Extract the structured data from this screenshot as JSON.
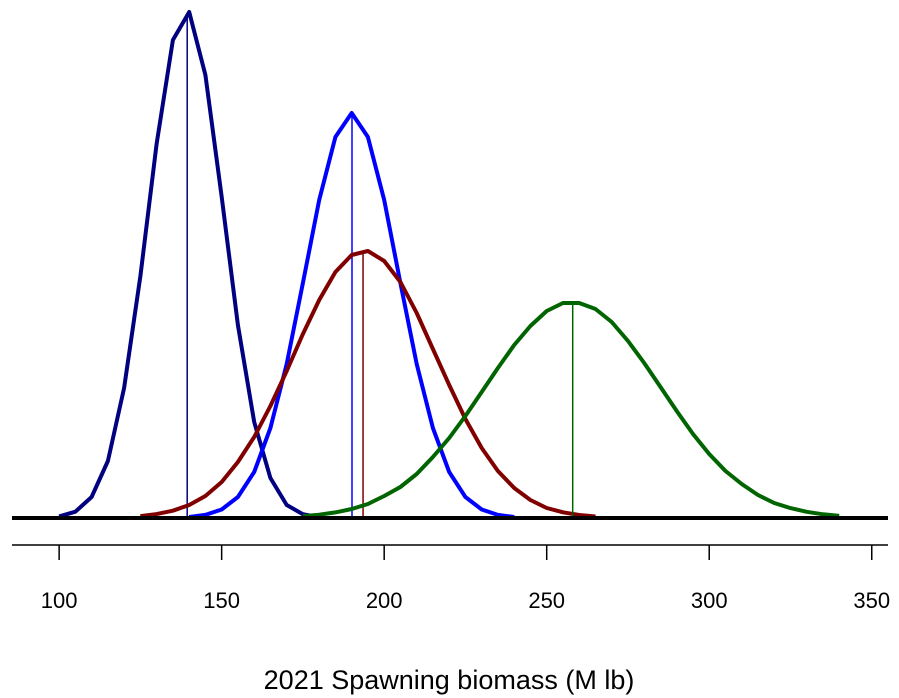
{
  "chart_data": {
    "type": "line",
    "x_label": "2021 Spawning biomass (M lb)",
    "xlim": [
      85.5,
      355
    ],
    "xticks": [
      100,
      150,
      200,
      250,
      300,
      350
    ],
    "ylim": [
      0,
      510
    ],
    "series": [
      {
        "color": "#000080",
        "median": 139.4,
        "x": [
          100,
          105,
          110,
          115,
          120,
          125,
          130,
          135,
          140,
          145,
          150,
          155,
          160,
          165,
          170,
          175,
          180
        ],
        "values": [
          1.6,
          6.3,
          21,
          57,
          130,
          242,
          374,
          478,
          506,
          443,
          321,
          193,
          96,
          40,
          13,
          3.8,
          0.9
        ]
      },
      {
        "color": "#0000ff",
        "median": 190.1,
        "x": [
          140,
          145,
          150,
          155,
          160,
          165,
          170,
          175,
          180,
          185,
          190,
          195,
          200,
          205,
          210,
          215,
          220,
          225,
          230,
          235,
          240
        ],
        "values": [
          1.0,
          3.1,
          8.5,
          21,
          46,
          90,
          154,
          235,
          318,
          381,
          405,
          381,
          318,
          235,
          154,
          90,
          46,
          21,
          8.5,
          3.1,
          1.0
        ]
      },
      {
        "color": "#800000",
        "median": 193.5,
        "x": [
          125,
          130,
          135,
          140,
          145,
          150,
          155,
          160,
          165,
          170,
          175,
          180,
          185,
          190,
          195,
          200,
          205,
          210,
          215,
          220,
          225,
          230,
          235,
          240,
          245,
          250,
          255,
          260,
          265
        ],
        "values": [
          1.9,
          3.9,
          7.3,
          13,
          22,
          36,
          56,
          81,
          112,
          147,
          184,
          218,
          246,
          263,
          267,
          257,
          236,
          205,
          169,
          133,
          99,
          70,
          47,
          30,
          18,
          10,
          5.7,
          3.0,
          1.5
        ]
      },
      {
        "color": "#006400",
        "median": 258,
        "x": [
          175,
          180,
          185,
          190,
          195,
          200,
          205,
          210,
          215,
          220,
          225,
          230,
          235,
          240,
          245,
          250,
          255,
          260,
          265,
          270,
          275,
          280,
          285,
          290,
          295,
          300,
          305,
          310,
          315,
          320,
          325,
          330,
          335,
          340
        ],
        "values": [
          1.9,
          3.3,
          5.6,
          9.0,
          14,
          22,
          31,
          44,
          61,
          80,
          102,
          126,
          150,
          173,
          192,
          207,
          215,
          215,
          209,
          196,
          177,
          155,
          131,
          107,
          84,
          64,
          47,
          34,
          23,
          15,
          9.9,
          6.2,
          3.7,
          2.1
        ]
      }
    ]
  }
}
